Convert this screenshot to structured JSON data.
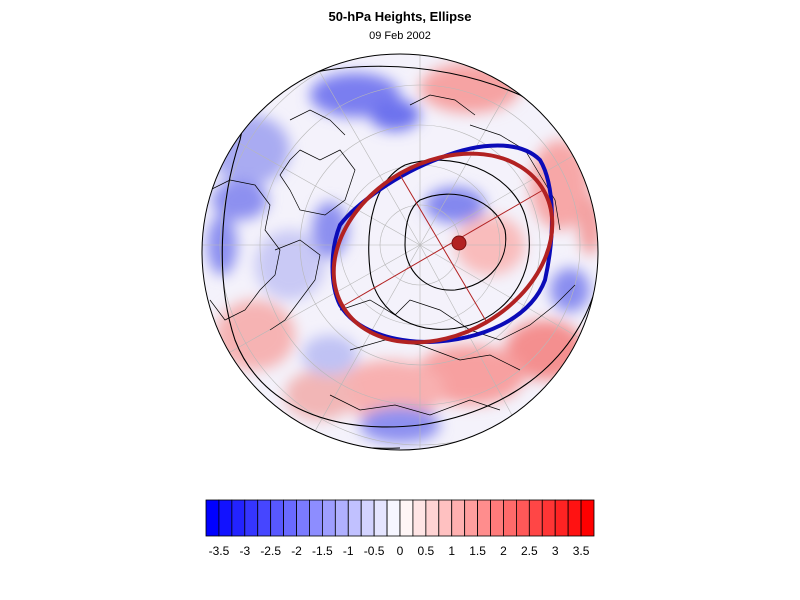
{
  "header": {
    "title": "50-hPa Heights, Ellipse",
    "date": "09 Feb 2002"
  },
  "map": {
    "projection": "polar stereographic (north)",
    "field": "height anomaly",
    "overlays": [
      "blue vortex edge contour",
      "red fitted ellipse",
      "ellipse major/minor axes",
      "ellipse centroid"
    ],
    "colors": {
      "negative": "#0000ff",
      "positive": "#ff0000",
      "ellipse": "#b22222",
      "vortex_edge": "#0000cc",
      "coast": "#000000"
    }
  },
  "colorbar": {
    "levels": [
      -3.75,
      -3.5,
      -3.25,
      -3,
      -2.75,
      -2.5,
      -2.25,
      -2,
      -1.75,
      -1.5,
      -1.25,
      -1,
      -0.75,
      -0.5,
      -0.25,
      0,
      0.25,
      0.5,
      0.75,
      1,
      1.25,
      1.5,
      1.75,
      2,
      2.25,
      2.5,
      2.75,
      3,
      3.25,
      3.5,
      3.75
    ],
    "tick_labels": [
      "-3.5",
      "-3",
      "-2.5",
      "-2",
      "-1.5",
      "-1",
      "-0.5",
      "0",
      "0.5",
      "1",
      "1.5",
      "2",
      "2.5",
      "3",
      "3.5"
    ],
    "tick_values": [
      -3.5,
      -3,
      -2.5,
      -2,
      -1.5,
      -1,
      -0.5,
      0,
      0.5,
      1,
      1.5,
      2,
      2.5,
      3,
      3.5
    ]
  }
}
